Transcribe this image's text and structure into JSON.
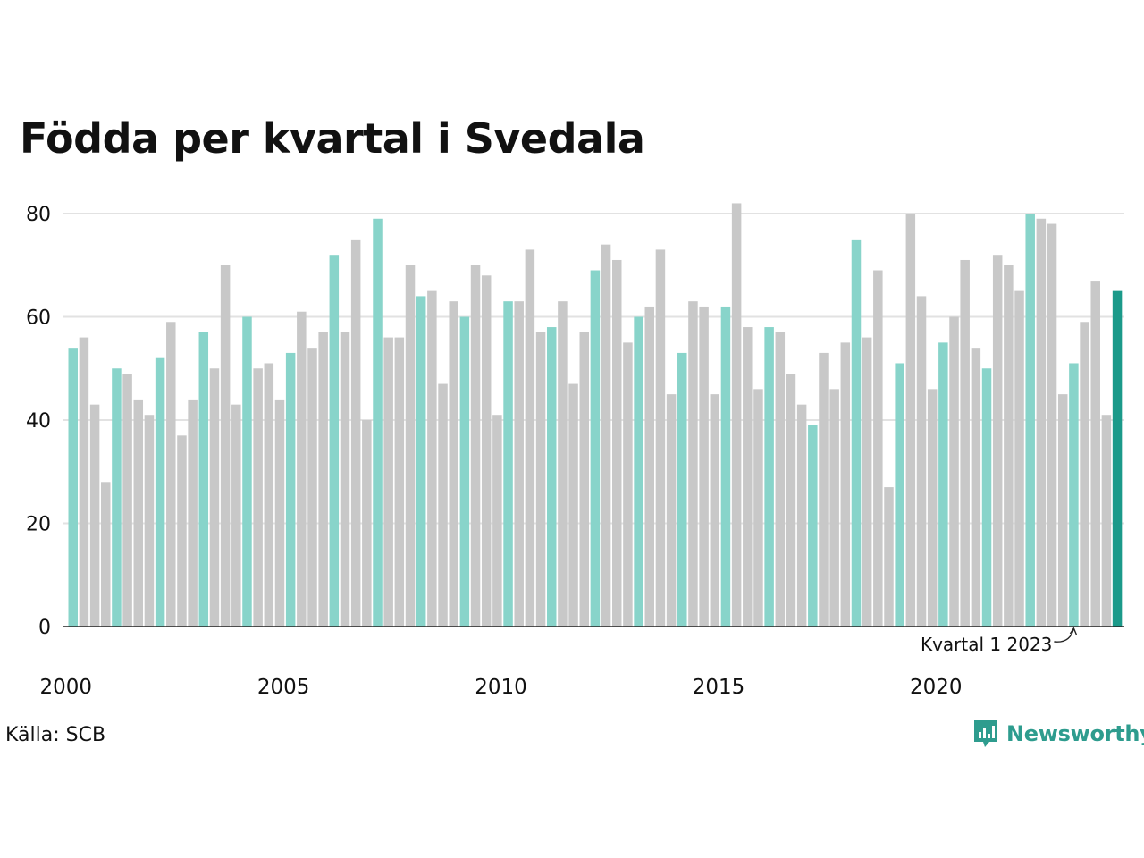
{
  "chart_data": {
    "type": "bar",
    "title": "Födda per kvartal i Svedala",
    "source": "Källa: SCB",
    "brand": "Newsworthy",
    "annotation": "Kvartal 1 2023",
    "ylim": [
      0,
      85
    ],
    "yticks": [
      0,
      20,
      40,
      60,
      80
    ],
    "x_tick_labels": [
      "2000",
      "2005",
      "2010",
      "2015",
      "2020"
    ],
    "x_tick_years": [
      2000,
      2005,
      2010,
      2015,
      2020
    ],
    "start_year": 2000,
    "annotated_year": 2023,
    "colors": {
      "q1": "#88d4ca",
      "other": "#c8c8c8",
      "latest": "#1b9a8a",
      "grid": "#e2e2e2",
      "axis": "#222222"
    },
    "values": [
      54,
      56,
      43,
      28,
      50,
      49,
      44,
      41,
      52,
      59,
      37,
      44,
      57,
      50,
      70,
      43,
      60,
      50,
      51,
      44,
      53,
      61,
      54,
      57,
      72,
      57,
      75,
      40,
      79,
      56,
      56,
      70,
      64,
      65,
      47,
      63,
      60,
      70,
      68,
      41,
      63,
      63,
      73,
      57,
      58,
      63,
      47,
      57,
      69,
      74,
      71,
      55,
      60,
      62,
      73,
      45,
      53,
      63,
      62,
      45,
      62,
      82,
      58,
      46,
      58,
      57,
      49,
      43,
      39,
      53,
      46,
      55,
      75,
      56,
      69,
      27,
      51,
      80,
      64,
      46,
      55,
      60,
      71,
      54,
      50,
      72,
      70,
      65,
      80,
      79,
      78,
      45,
      51,
      59,
      67,
      41,
      65
    ]
  }
}
